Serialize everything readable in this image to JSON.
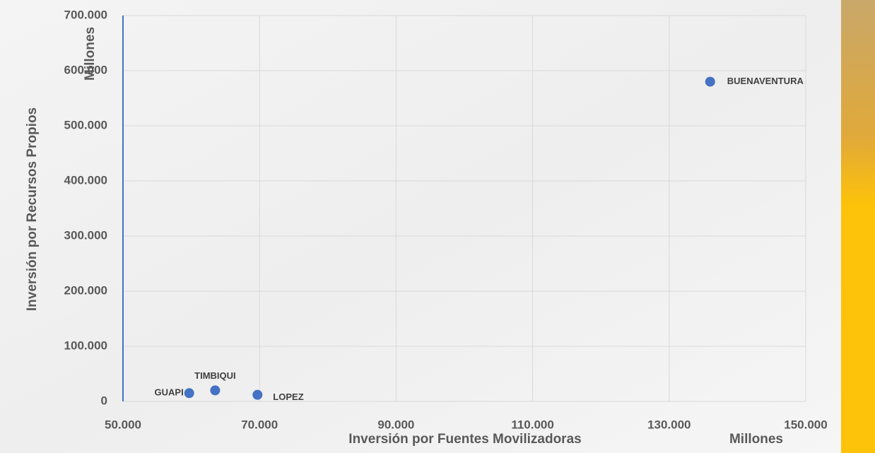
{
  "chart_data": {
    "type": "scatter",
    "x_label": "Inversión por Fuentes Movilizadoras",
    "y_label": "Inversión por Recursos Propios",
    "x_unit": "Millones",
    "y_unit": "Millones",
    "x": [
      59700,
      63500,
      69700,
      136000
    ],
    "values": [
      15000,
      20000,
      12000,
      580000
    ],
    "point_labels": [
      "GUAPI",
      "TIMBIQUI",
      "LOPEZ",
      "BUENAVENTURA"
    ],
    "color": "#4472c4",
    "xlim": [
      50000,
      150000
    ],
    "ylim": [
      0,
      700000
    ],
    "xticks": [
      {
        "value": 50000,
        "label": "50.000"
      },
      {
        "value": 70000,
        "label": "70.000"
      },
      {
        "value": 90000,
        "label": "90.000"
      },
      {
        "value": 110000,
        "label": "110.000"
      },
      {
        "value": 130000,
        "label": "130.000"
      },
      {
        "value": 150000,
        "label": "150.000"
      }
    ],
    "yticks": [
      0,
      {
        "value": 100000,
        "label": "100.000"
      },
      {
        "value": 200000,
        "label": "200.000"
      },
      {
        "value": 300000,
        "label": "300.000"
      },
      {
        "value": 400000,
        "label": "400.000"
      },
      {
        "value": 500000,
        "label": "500.000"
      },
      {
        "value": 600000,
        "label": "600.000"
      },
      {
        "value": 700000,
        "label": "700.000"
      }
    ],
    "grid": true
  }
}
